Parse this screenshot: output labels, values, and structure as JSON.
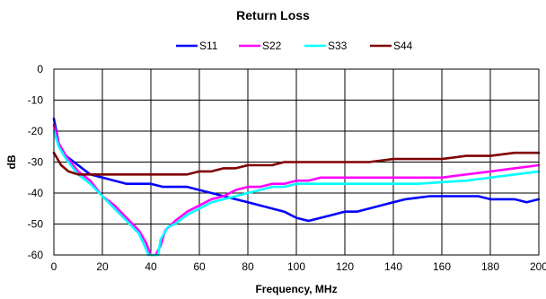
{
  "chart_data": {
    "type": "line",
    "title": "Return Loss",
    "xlabel": "Frequency, MHz",
    "ylabel": "dB",
    "xlim": [
      0,
      200
    ],
    "ylim": [
      -60,
      0
    ],
    "x_ticks": [
      "0",
      "20",
      "40",
      "60",
      "80",
      "100",
      "120",
      "140",
      "160",
      "180",
      "200"
    ],
    "y_ticks": [
      "0",
      "-10",
      "-20",
      "-30",
      "-40",
      "-50",
      "-60"
    ],
    "grid": true,
    "legend_position": "top",
    "series": [
      {
        "name": "S11",
        "color": "#0000FF",
        "points": [
          [
            0,
            -16
          ],
          [
            2,
            -24
          ],
          [
            5,
            -28
          ],
          [
            10,
            -31
          ],
          [
            15,
            -34
          ],
          [
            20,
            -35
          ],
          [
            25,
            -36
          ],
          [
            30,
            -37
          ],
          [
            40,
            -37
          ],
          [
            45,
            -38
          ],
          [
            55,
            -38
          ],
          [
            60,
            -39
          ],
          [
            65,
            -40
          ],
          [
            70,
            -41
          ],
          [
            75,
            -42
          ],
          [
            80,
            -43
          ],
          [
            85,
            -44
          ],
          [
            90,
            -45
          ],
          [
            95,
            -46
          ],
          [
            100,
            -48
          ],
          [
            105,
            -49
          ],
          [
            110,
            -48
          ],
          [
            115,
            -47
          ],
          [
            120,
            -46
          ],
          [
            125,
            -46
          ],
          [
            130,
            -45
          ],
          [
            135,
            -44
          ],
          [
            140,
            -43
          ],
          [
            145,
            -42
          ],
          [
            155,
            -41
          ],
          [
            165,
            -41
          ],
          [
            175,
            -41
          ],
          [
            180,
            -42
          ],
          [
            185,
            -42
          ],
          [
            190,
            -42
          ],
          [
            195,
            -43
          ],
          [
            200,
            -42
          ]
        ]
      },
      {
        "name": "S22",
        "color": "#FF00FF",
        "points": [
          [
            0,
            -18
          ],
          [
            2,
            -24
          ],
          [
            5,
            -28
          ],
          [
            10,
            -33
          ],
          [
            15,
            -36
          ],
          [
            20,
            -41
          ],
          [
            25,
            -44
          ],
          [
            30,
            -48
          ],
          [
            35,
            -52
          ],
          [
            38,
            -56
          ],
          [
            40,
            -60
          ],
          [
            42,
            -60
          ],
          [
            44,
            -57
          ],
          [
            46,
            -52
          ],
          [
            50,
            -49
          ],
          [
            55,
            -46
          ],
          [
            60,
            -44
          ],
          [
            65,
            -42
          ],
          [
            70,
            -41
          ],
          [
            75,
            -39
          ],
          [
            80,
            -38
          ],
          [
            85,
            -38
          ],
          [
            90,
            -37
          ],
          [
            95,
            -37
          ],
          [
            100,
            -36
          ],
          [
            105,
            -36
          ],
          [
            110,
            -35
          ],
          [
            120,
            -35
          ],
          [
            140,
            -35
          ],
          [
            160,
            -35
          ],
          [
            170,
            -34
          ],
          [
            180,
            -33
          ],
          [
            190,
            -32
          ],
          [
            200,
            -31
          ]
        ]
      },
      {
        "name": "S33",
        "color": "#00FFFF",
        "points": [
          [
            0,
            -20
          ],
          [
            2,
            -25
          ],
          [
            5,
            -29
          ],
          [
            10,
            -34
          ],
          [
            15,
            -37
          ],
          [
            20,
            -41
          ],
          [
            25,
            -45
          ],
          [
            30,
            -49
          ],
          [
            35,
            -53
          ],
          [
            38,
            -58
          ],
          [
            39,
            -60
          ],
          [
            43,
            -60
          ],
          [
            44,
            -55
          ],
          [
            47,
            -51
          ],
          [
            50,
            -50
          ],
          [
            55,
            -47
          ],
          [
            60,
            -45
          ],
          [
            65,
            -43
          ],
          [
            70,
            -42
          ],
          [
            75,
            -41
          ],
          [
            80,
            -40
          ],
          [
            85,
            -39
          ],
          [
            90,
            -38
          ],
          [
            95,
            -38
          ],
          [
            100,
            -37
          ],
          [
            110,
            -37
          ],
          [
            130,
            -37
          ],
          [
            150,
            -37
          ],
          [
            170,
            -36
          ],
          [
            180,
            -35
          ],
          [
            190,
            -34
          ],
          [
            200,
            -33
          ]
        ]
      },
      {
        "name": "S44",
        "color": "#800000",
        "points": [
          [
            0,
            -27
          ],
          [
            3,
            -31
          ],
          [
            6,
            -33
          ],
          [
            10,
            -34
          ],
          [
            15,
            -34
          ],
          [
            20,
            -34
          ],
          [
            30,
            -34
          ],
          [
            40,
            -34
          ],
          [
            50,
            -34
          ],
          [
            55,
            -34
          ],
          [
            60,
            -33
          ],
          [
            65,
            -33
          ],
          [
            70,
            -32
          ],
          [
            75,
            -32
          ],
          [
            80,
            -31
          ],
          [
            85,
            -31
          ],
          [
            90,
            -31
          ],
          [
            95,
            -30
          ],
          [
            100,
            -30
          ],
          [
            110,
            -30
          ],
          [
            120,
            -30
          ],
          [
            130,
            -30
          ],
          [
            140,
            -29
          ],
          [
            150,
            -29
          ],
          [
            160,
            -29
          ],
          [
            170,
            -28
          ],
          [
            180,
            -28
          ],
          [
            190,
            -27
          ],
          [
            200,
            -27
          ]
        ]
      }
    ]
  }
}
